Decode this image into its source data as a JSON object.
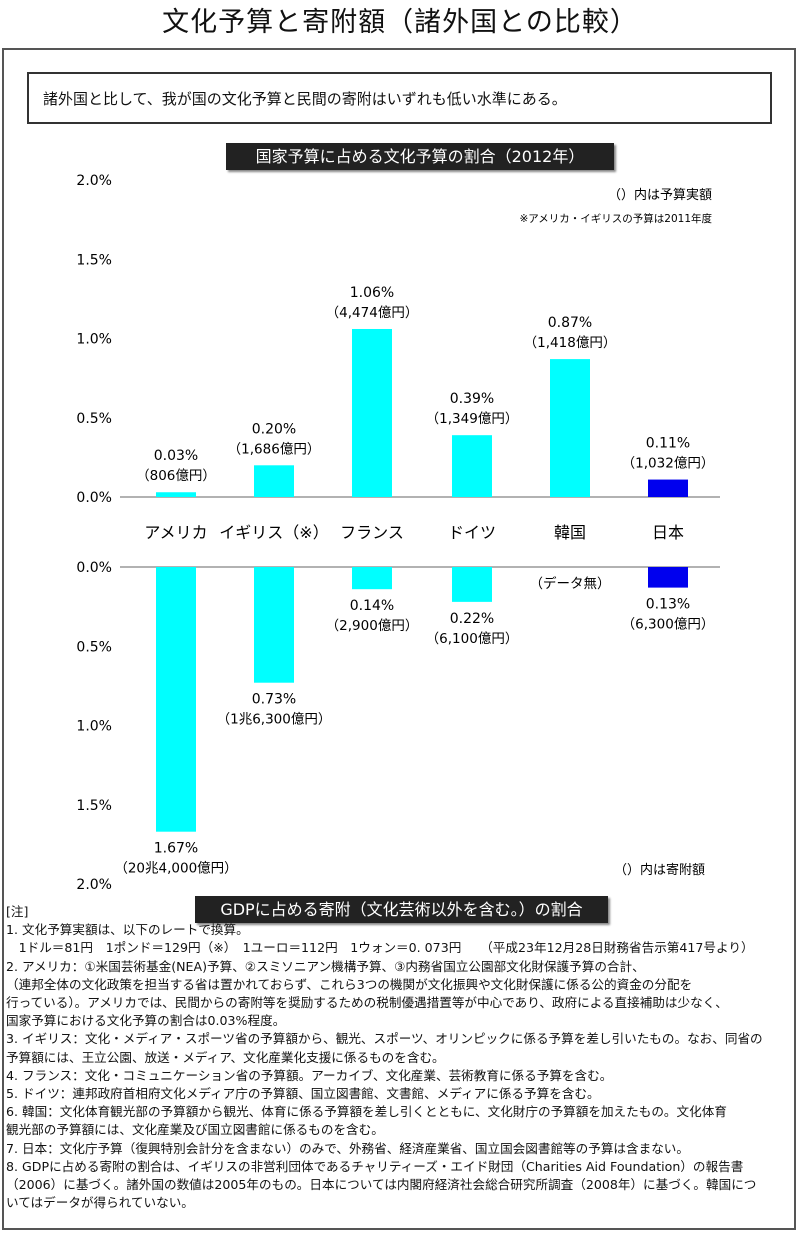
{
  "title": "文化予算と寄附額（諸外国との比較）",
  "summary": "諸外国と比して、我が国の文化予算と民間の寄附はいずれも低い水準にある。",
  "chart_data": [
    {
      "type": "bar",
      "title": "国家予算に占める文化予算の割合（2012年）",
      "categories": [
        "アメリカ",
        "イギリス（※）",
        "フランス",
        "ドイツ",
        "韓国",
        "日本"
      ],
      "values": [
        0.03,
        0.2,
        1.06,
        0.39,
        0.87,
        0.11
      ],
      "value_labels": [
        "0.03%",
        "0.20%",
        "1.06%",
        "0.39%",
        "0.87%",
        "0.11%"
      ],
      "amount_labels": [
        "（806億円）",
        "（1,686億円）",
        "（4,474億円）",
        "（1,349億円）",
        "（1,418億円）",
        "（1,032億円）"
      ],
      "yticks": [
        "2.0%",
        "1.5%",
        "1.0%",
        "0.5%",
        "0.0%"
      ],
      "ylim": [
        0,
        2.0
      ],
      "direction": "up",
      "annotations": [
        "（）内は予算実額",
        "※アメリカ・イギリスの予算は2011年度"
      ],
      "colors": [
        "#00ffff",
        "#00ffff",
        "#00ffff",
        "#00ffff",
        "#00ffff",
        "#0000ee"
      ]
    },
    {
      "type": "bar",
      "title": "GDPに占める寄附（文化芸術以外を含む。）の割合",
      "categories": [
        "アメリカ",
        "イギリス（※）",
        "フランス",
        "ドイツ",
        "韓国",
        "日本"
      ],
      "values": [
        1.67,
        0.73,
        0.14,
        0.22,
        null,
        0.13
      ],
      "value_labels": [
        "1.67%",
        "0.73%",
        "0.14%",
        "0.22%",
        "",
        "0.13%"
      ],
      "amount_labels": [
        "（20兆4,000億円）",
        "（1兆6,300億円）",
        "（2,900億円）",
        "（6,100億円）",
        "（データ無）",
        "（6,300億円）"
      ],
      "yticks": [
        "0.0%",
        "0.5%",
        "1.0%",
        "1.5%",
        "2.0%"
      ],
      "ylim": [
        0,
        2.0
      ],
      "direction": "down",
      "annotations": [
        "（）内は寄附額"
      ],
      "colors": [
        "#00ffff",
        "#00ffff",
        "#00ffff",
        "#00ffff",
        "#00ffff",
        "#0000ee"
      ]
    }
  ],
  "notes": [
    "[注]",
    "1. 文化予算実額は、以下のレートで換算。",
    "　1ドル＝81円　1ポンド＝129円（※）　1ユーロ＝112円　1ウォン＝0. 073円　　（平成23年12月28日財務省告示第417号より）",
    "2. アメリカ：①米国芸術基金(NEA)予算、②スミソニアン機構予算、③内務省国立公園部文化財保護予算の合計、",
    "（連邦全体の文化政策を担当する省は置かれておらず、これら3つの機関が文化振興や文化財保護に係る公的資金の分配を",
    "行っている）。アメリカでは、民間からの寄附等を奨励するための税制優遇措置等が中心であり、政府による直接補助は少なく、",
    "国家予算における文化予算の割合は0.03%程度。",
    "3. イギリス：文化・メディア・スポーツ省の予算額から、観光、スポーツ、オリンピックに係る予算を差し引いたもの。なお、同省の",
    "予算額には、王立公園、放送・メディア、文化産業化支援に係るものを含む。",
    "4. フランス：文化・コミュニケーション省の予算額。アーカイブ、文化産業、芸術教育に係る予算を含む。",
    "5. ドイツ：連邦政府首相府文化メディア庁の予算額、国立図書館、文書館、メディアに係る予算を含む。",
    "6. 韓国：文化体育観光部の予算額から観光、体育に係る予算額を差し引くとともに、文化財庁の予算額を加えたもの。文化体育",
    "観光部の予算額には、文化産業及び国立図書館に係るものを含む。",
    "7. 日本：文化庁予算（復興特別会計分を含まない）のみで、外務省、経済産業省、国立国会図書館等の予算は含まない。",
    "8. GDPに占める寄附の割合は、イギリスの非営利団体であるチャリティーズ・エイド財団（Charities Aid Foundation）の報告書",
    "（2006）に基づく。諸外国の数値は2005年のもの。日本については内閣府経済社会総合研究所調査（2008年）に基づく。韓国につ",
    "いてはデータが得られていない。"
  ]
}
